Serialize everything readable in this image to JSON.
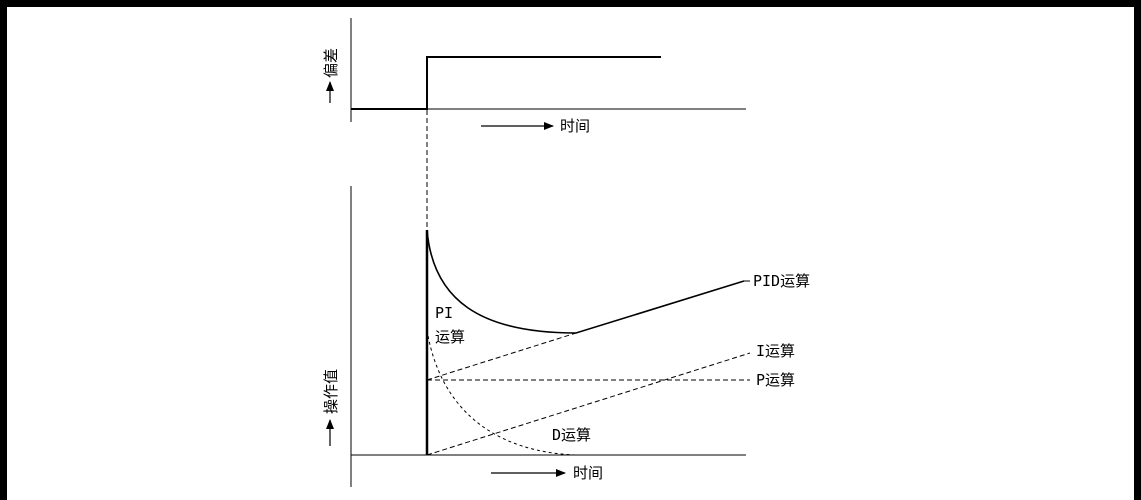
{
  "top_chart": {
    "y_axis_label": "偏差",
    "x_axis_label": "时间"
  },
  "bottom_chart": {
    "y_axis_label": "操作值",
    "x_axis_label": "时间",
    "curve_labels": {
      "pid": "PID运算",
      "pi_line1": "PI",
      "pi_line2": "运算",
      "i": "I运算",
      "p": "P运算",
      "d": "D运算"
    }
  },
  "colors": {
    "line": "#000000",
    "frame": "#000000",
    "background": "#ffffff"
  }
}
